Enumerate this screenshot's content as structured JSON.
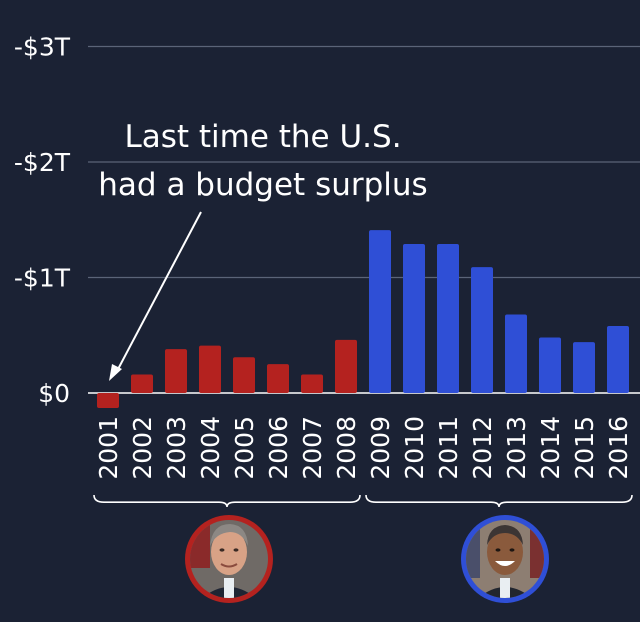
{
  "chart_data": {
    "type": "bar",
    "title": "",
    "xlabel": "",
    "ylabel": "",
    "ylim": [
      -0.15,
      3.05
    ],
    "y_inverted": true,
    "y_ticks": [
      {
        "value": 0,
        "label": "$0"
      },
      {
        "value": 1,
        "label": "-$1T"
      },
      {
        "value": 2,
        "label": "-$2T"
      },
      {
        "value": 3,
        "label": "-$3T"
      }
    ],
    "grid": true,
    "categories": [
      "2001",
      "2002",
      "2003",
      "2004",
      "2005",
      "2006",
      "2007",
      "2008",
      "2009",
      "2010",
      "2011",
      "2012",
      "2013",
      "2014",
      "2015",
      "2016"
    ],
    "values": [
      -0.13,
      0.16,
      0.38,
      0.41,
      0.31,
      0.25,
      0.16,
      0.46,
      1.41,
      1.29,
      1.29,
      1.09,
      0.68,
      0.48,
      0.44,
      0.58
    ],
    "bar_colors": [
      "#b4221f",
      "#b4221f",
      "#b4221f",
      "#b4221f",
      "#b4221f",
      "#b4221f",
      "#b4221f",
      "#b4221f",
      "#2f4fd6",
      "#2f4fd6",
      "#2f4fd6",
      "#2f4fd6",
      "#2f4fd6",
      "#2f4fd6",
      "#2f4fd6",
      "#2f4fd6"
    ],
    "annotation": {
      "lines": [
        "Last time the U.S.",
        "had a budget surplus"
      ],
      "points_to": "2001"
    },
    "groups": [
      {
        "from": "2001",
        "to": "2008",
        "color": "#b4221f",
        "portrait": "george-w-bush-portrait"
      },
      {
        "from": "2009",
        "to": "2016",
        "color": "#2f4fd6",
        "portrait": "barack-obama-portrait"
      }
    ]
  },
  "colors": {
    "background": "#1b2234",
    "gridline": "#5b6478",
    "text": "#ffffff",
    "republican": "#b4221f",
    "democrat": "#2f4fd6"
  }
}
